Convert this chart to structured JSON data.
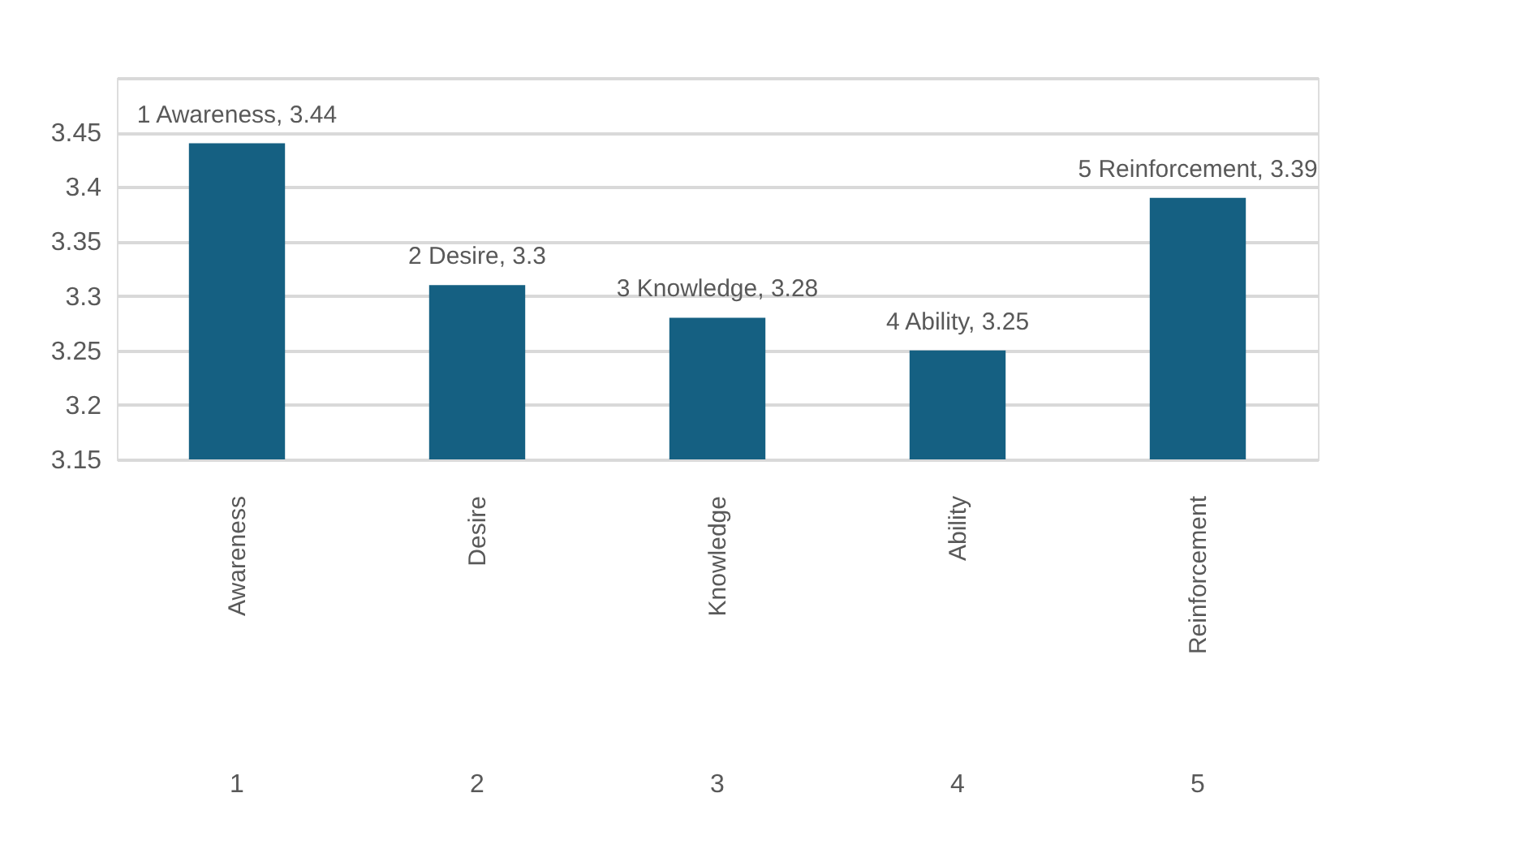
{
  "chart_data": {
    "type": "bar",
    "categories": [
      "Awareness",
      "Desire",
      "Knowledge",
      "Ability",
      "Reinforcement"
    ],
    "values": [
      3.44,
      3.31,
      3.28,
      3.25,
      3.39
    ],
    "value_labels": [
      "1 Awareness, 3.44",
      "2 Desire, 3.3",
      "3 Knowledge, 3.28",
      "4 Ability, 3.25",
      "5 Reinforcement, 3.39"
    ],
    "color": "#156082",
    "ylim": [
      3.15,
      3.5
    ],
    "yticks": [
      3.15,
      3.2,
      3.25,
      3.3,
      3.35,
      3.4,
      3.45,
      {
        "value": 3.5,
        "label": null
      }
    ],
    "grid": "y",
    "legend": false,
    "annotations": [
      "1",
      "2",
      "3",
      "4",
      "5"
    ]
  }
}
